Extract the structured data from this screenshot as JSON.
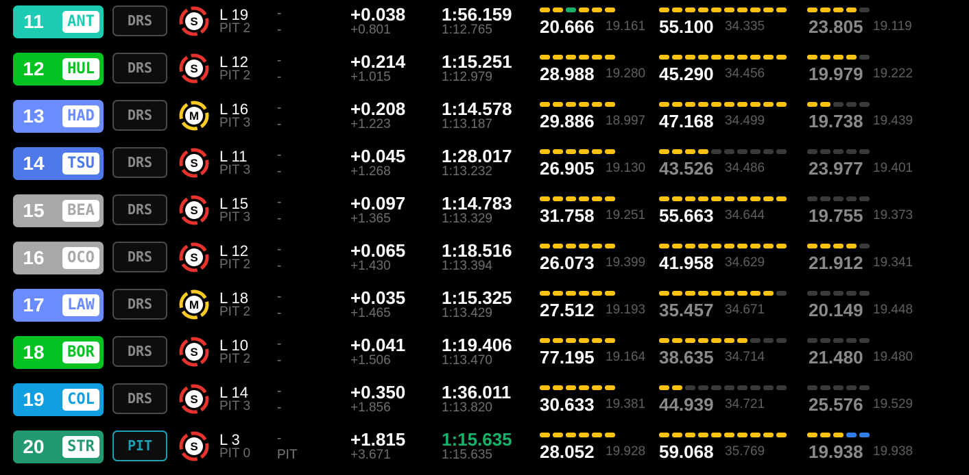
{
  "colors": {
    "ANT": "#1ccbb2",
    "HUL": "#00c221",
    "HAD": "#6b8cff",
    "TSU": "#4f79ea",
    "BEA": "#a8a8a8",
    "OCO": "#a8a8a8",
    "LAW": "#6b8cff",
    "BOR": "#00c221",
    "COL": "#129fe0",
    "STR": "#229971",
    "soft": "#e8322d",
    "medium": "#ffcc22"
  },
  "rows": [
    {
      "pos": "11",
      "code": "ANT",
      "status": "DRS",
      "tyre": "soft",
      "tyre_label": "S",
      "lap": "L 19",
      "pits": "PIT 2",
      "dash1": "-",
      "dash2": "-",
      "interval": "+0.038",
      "gap": "+0.801",
      "last": "1:56.159",
      "best": "1:12.765",
      "last_best": false,
      "s1": {
        "minis": "yygyyy",
        "time": "20.666",
        "best": "19.161",
        "dim": false
      },
      "s2": {
        "minis": "yyyyyyyyyy",
        "time": "55.100",
        "best": "34.335",
        "dim": false
      },
      "s3": {
        "minis": "yyyyk",
        "time": "23.805",
        "best": "19.119",
        "dim": true
      }
    },
    {
      "pos": "12",
      "code": "HUL",
      "status": "DRS",
      "tyre": "soft",
      "tyre_label": "S",
      "lap": "L 12",
      "pits": "PIT 2",
      "dash1": "-",
      "dash2": "-",
      "interval": "+0.214",
      "gap": "+1.015",
      "last": "1:15.251",
      "best": "1:12.979",
      "last_best": false,
      "s1": {
        "minis": "yyyyyy",
        "time": "28.988",
        "best": "19.280",
        "dim": false
      },
      "s2": {
        "minis": "yyyyyyyyyy",
        "time": "45.290",
        "best": "34.456",
        "dim": false
      },
      "s3": {
        "minis": "yyyyk",
        "time": "19.979",
        "best": "19.222",
        "dim": true
      }
    },
    {
      "pos": "13",
      "code": "HAD",
      "status": "DRS",
      "tyre": "medium",
      "tyre_label": "M",
      "lap": "L 16",
      "pits": "PIT 3",
      "dash1": "-",
      "dash2": "-",
      "interval": "+0.208",
      "gap": "+1.223",
      "last": "1:14.578",
      "best": "1:13.187",
      "last_best": false,
      "s1": {
        "minis": "yyyyyy",
        "time": "29.886",
        "best": "18.997",
        "dim": false
      },
      "s2": {
        "minis": "yyyyyyyyyy",
        "time": "47.168",
        "best": "34.499",
        "dim": false
      },
      "s3": {
        "minis": "yykkk",
        "time": "19.738",
        "best": "19.439",
        "dim": true
      }
    },
    {
      "pos": "14",
      "code": "TSU",
      "status": "DRS",
      "tyre": "soft",
      "tyre_label": "S",
      "lap": "L 11",
      "pits": "PIT 3",
      "dash1": "-",
      "dash2": "-",
      "interval": "+0.045",
      "gap": "+1.268",
      "last": "1:28.017",
      "best": "1:13.232",
      "last_best": false,
      "s1": {
        "minis": "yyyyyy",
        "time": "26.905",
        "best": "19.130",
        "dim": false
      },
      "s2": {
        "minis": "yyyykkkkkk",
        "time": "43.526",
        "best": "34.486",
        "dim": true
      },
      "s3": {
        "minis": "kkkkk",
        "time": "23.977",
        "best": "19.401",
        "dim": true
      }
    },
    {
      "pos": "15",
      "code": "BEA",
      "status": "DRS",
      "tyre": "soft",
      "tyre_label": "S",
      "lap": "L 15",
      "pits": "PIT 3",
      "dash1": "-",
      "dash2": "-",
      "interval": "+0.097",
      "gap": "+1.365",
      "last": "1:14.783",
      "best": "1:13.329",
      "last_best": false,
      "s1": {
        "minis": "yyyyyy",
        "time": "31.758",
        "best": "19.251",
        "dim": false
      },
      "s2": {
        "minis": "yyyyyyyyyy",
        "time": "55.663",
        "best": "34.644",
        "dim": false
      },
      "s3": {
        "minis": "kkkkk",
        "time": "19.755",
        "best": "19.373",
        "dim": true
      }
    },
    {
      "pos": "16",
      "code": "OCO",
      "status": "DRS",
      "tyre": "soft",
      "tyre_label": "S",
      "lap": "L 12",
      "pits": "PIT 2",
      "dash1": "-",
      "dash2": "-",
      "interval": "+0.065",
      "gap": "+1.430",
      "last": "1:18.516",
      "best": "1:13.394",
      "last_best": false,
      "s1": {
        "minis": "yyyyyy",
        "time": "26.073",
        "best": "19.399",
        "dim": false
      },
      "s2": {
        "minis": "yyyyyyyyyy",
        "time": "41.958",
        "best": "34.629",
        "dim": false
      },
      "s3": {
        "minis": "yyyyk",
        "time": "21.912",
        "best": "19.341",
        "dim": true
      }
    },
    {
      "pos": "17",
      "code": "LAW",
      "status": "DRS",
      "tyre": "medium",
      "tyre_label": "M",
      "lap": "L 18",
      "pits": "PIT 2",
      "dash1": "-",
      "dash2": "-",
      "interval": "+0.035",
      "gap": "+1.465",
      "last": "1:15.325",
      "best": "1:13.429",
      "last_best": false,
      "s1": {
        "minis": "yyyyyy",
        "time": "27.512",
        "best": "19.193",
        "dim": false
      },
      "s2": {
        "minis": "yyyyyyyyyk",
        "time": "35.457",
        "best": "34.671",
        "dim": true
      },
      "s3": {
        "minis": "kkkkk",
        "time": "20.149",
        "best": "19.448",
        "dim": true
      }
    },
    {
      "pos": "18",
      "code": "BOR",
      "status": "DRS",
      "tyre": "soft",
      "tyre_label": "S",
      "lap": "L 10",
      "pits": "PIT 2",
      "dash1": "-",
      "dash2": "-",
      "interval": "+0.041",
      "gap": "+1.506",
      "last": "1:19.406",
      "best": "1:13.470",
      "last_best": false,
      "s1": {
        "minis": "yyyyyy",
        "time": "77.195",
        "best": "19.164",
        "dim": false
      },
      "s2": {
        "minis": "yyyyyyykkk",
        "time": "38.635",
        "best": "34.714",
        "dim": true
      },
      "s3": {
        "minis": "kkkkk",
        "time": "21.480",
        "best": "19.480",
        "dim": true
      }
    },
    {
      "pos": "19",
      "code": "COL",
      "status": "DRS",
      "tyre": "soft",
      "tyre_label": "S",
      "lap": "L 14",
      "pits": "PIT 3",
      "dash1": "-",
      "dash2": "-",
      "interval": "+0.350",
      "gap": "+1.856",
      "last": "1:36.011",
      "best": "1:13.820",
      "last_best": false,
      "s1": {
        "minis": "yyyyyy",
        "time": "30.633",
        "best": "19.381",
        "dim": false
      },
      "s2": {
        "minis": "yykkkkkkkk",
        "time": "44.939",
        "best": "34.721",
        "dim": true
      },
      "s3": {
        "minis": "kkkkk",
        "time": "25.576",
        "best": "19.529",
        "dim": true
      }
    },
    {
      "pos": "20",
      "code": "STR",
      "status": "PIT",
      "tyre": "soft",
      "tyre_label": "S",
      "lap": "L 3",
      "pits": "PIT 0",
      "dash1": "-",
      "dash2": "PIT",
      "interval": "+1.815",
      "gap": "+3.671",
      "last": "1:15.635",
      "best": "1:15.635",
      "last_best": true,
      "s1": {
        "minis": "yyyyyy",
        "time": "28.052",
        "best": "19.928",
        "dim": false
      },
      "s2": {
        "minis": "yyyyyyyyyy",
        "time": "59.068",
        "best": "35.769",
        "dim": false
      },
      "s3": {
        "minis": "yyybb",
        "time": "19.938",
        "best": "19.938",
        "dim": true
      }
    }
  ]
}
